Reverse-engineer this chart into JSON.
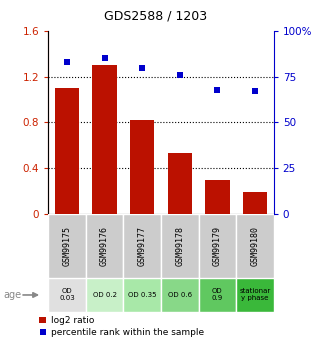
{
  "title": "GDS2588 / 1203",
  "samples": [
    "GSM99175",
    "GSM99176",
    "GSM99177",
    "GSM99178",
    "GSM99179",
    "GSM99180"
  ],
  "log2_ratio": [
    1.1,
    1.3,
    0.82,
    0.53,
    0.3,
    0.19
  ],
  "percentile_rank": [
    83,
    85,
    80,
    76,
    68,
    67
  ],
  "bar_color": "#bb1100",
  "dot_color": "#0000cc",
  "ylim_left": [
    0,
    1.6
  ],
  "ylim_right": [
    0,
    100
  ],
  "yticks_left": [
    0,
    0.4,
    0.8,
    1.2,
    1.6
  ],
  "yticks_right": [
    0,
    25,
    50,
    75,
    100
  ],
  "ytick_labels_left": [
    "0",
    "0.4",
    "0.8",
    "1.2",
    "1.6"
  ],
  "ytick_labels_right": [
    "0",
    "25",
    "50",
    "75",
    "100%"
  ],
  "age_labels": [
    "OD\n0.03",
    "OD 0.2",
    "OD 0.35",
    "OD 0.6",
    "OD\n0.9",
    "stationar\ny phase"
  ],
  "age_colors": [
    "#e0e0e0",
    "#c8f0c8",
    "#a8e8a8",
    "#88d888",
    "#60c860",
    "#3ab83a"
  ],
  "legend_bar_label": "log2 ratio",
  "legend_dot_label": "percentile rank within the sample",
  "xlabel_age": "age",
  "background_color": "#ffffff",
  "sample_label_bg": "#cccccc"
}
